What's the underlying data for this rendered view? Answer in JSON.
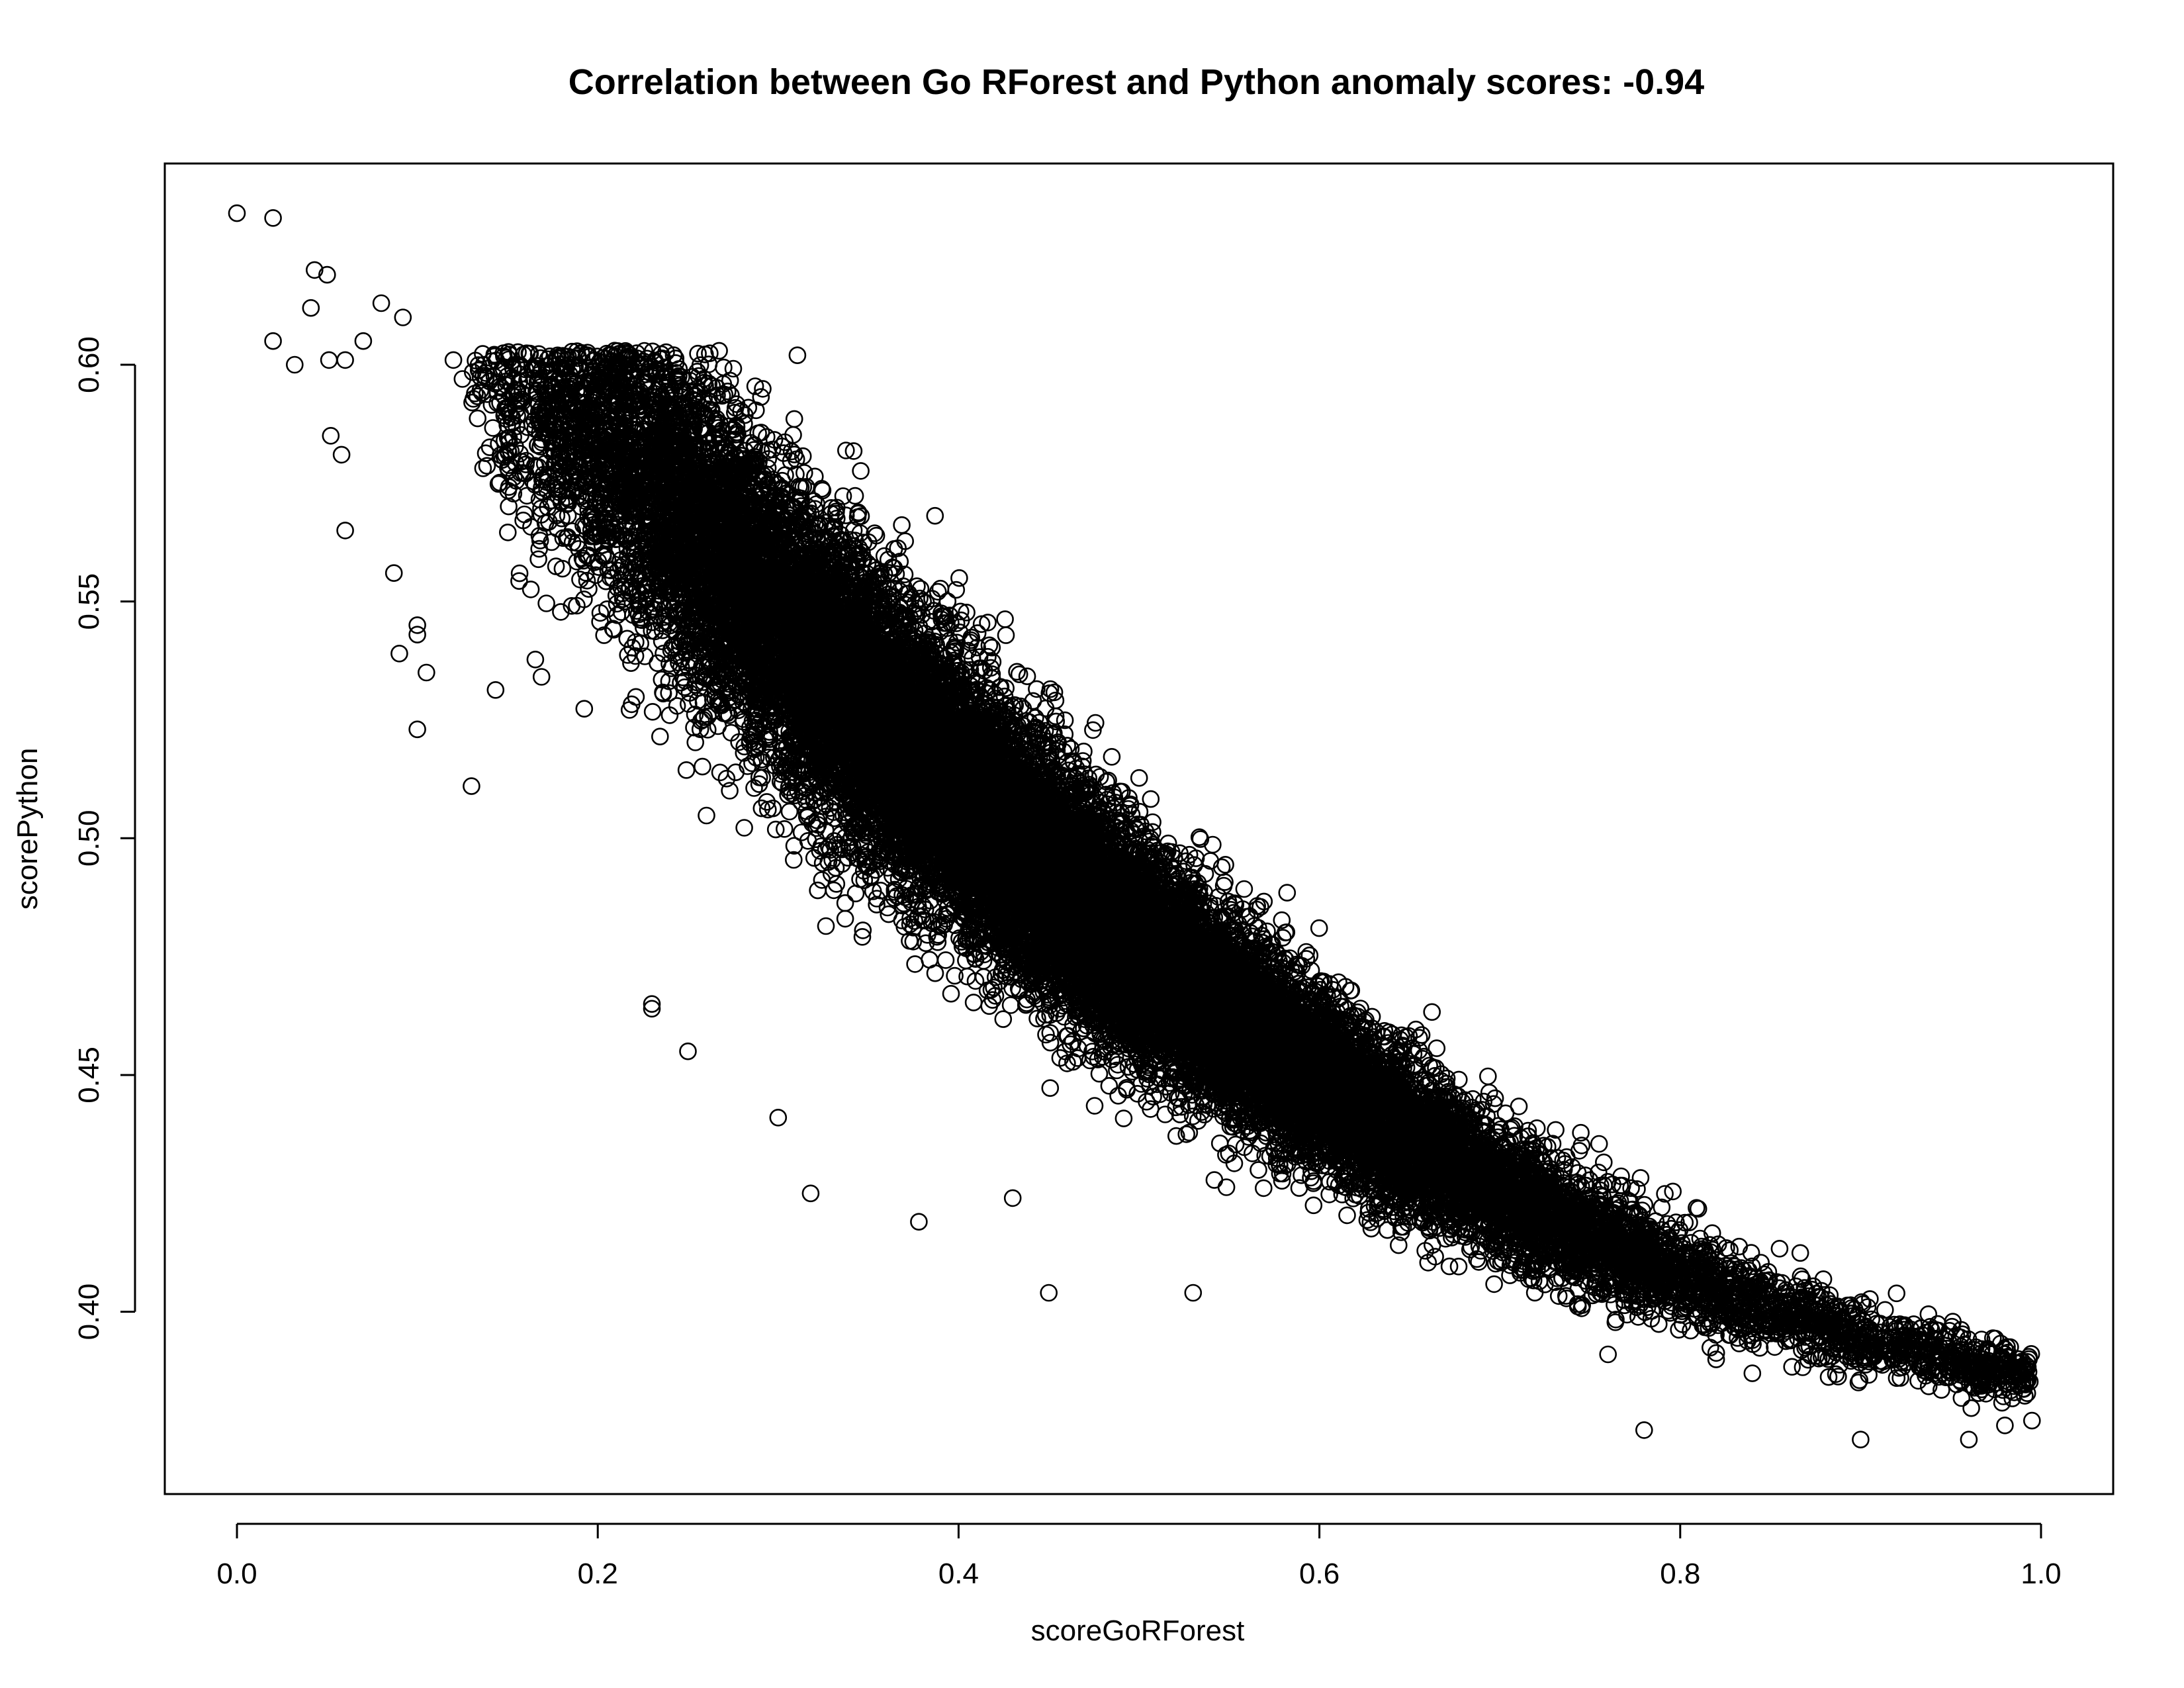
{
  "chart_data": {
    "type": "scatter",
    "title": "Correlation between Go RForest and Python anomaly scores: -0.94",
    "xlabel": "scoreGoRForest",
    "ylabel": "scorePython",
    "xlim": [
      -0.04,
      1.04
    ],
    "ylim": [
      0.3615,
      0.6425
    ],
    "x_ticks": [
      {
        "value": 0.0,
        "label": "0.0"
      },
      {
        "value": 0.2,
        "label": "0.2"
      },
      {
        "value": 0.4,
        "label": "0.4"
      },
      {
        "value": 0.6,
        "label": "0.6"
      },
      {
        "value": 0.8,
        "label": "0.8"
      },
      {
        "value": 1.0,
        "label": "1.0"
      }
    ],
    "y_ticks": [
      {
        "value": 0.4,
        "label": "0.40"
      },
      {
        "value": 0.45,
        "label": "0.45"
      },
      {
        "value": 0.5,
        "label": "0.50"
      },
      {
        "value": 0.55,
        "label": "0.55"
      },
      {
        "value": 0.6,
        "label": "0.60"
      }
    ],
    "grid": false,
    "marker": "open-circle",
    "correlation": -0.94,
    "series": [
      {
        "x": [
          0.0,
          0.02,
          0.043,
          0.05,
          0.02,
          0.041,
          0.08,
          0.092,
          0.032,
          0.051,
          0.06,
          0.07,
          0.06,
          0.12,
          0.125,
          0.1,
          0.058,
          0.052,
          0.1,
          0.105,
          0.09,
          0.087,
          0.1,
          0.13,
          0.318,
          0.378,
          0.45,
          0.25,
          0.3,
          0.49,
          0.61,
          0.65,
          0.78,
          0.92,
          0.96,
          0.995,
          0.43,
          0.535,
          0.16,
          0.23,
          0.53,
          0.745,
          0.23,
          0.6,
          0.76,
          0.84,
          0.965,
          0.9,
          0.18,
          0.37,
          0.92,
          0.98
        ],
        "y": [
          0.632,
          0.631,
          0.62,
          0.619,
          0.605,
          0.612,
          0.613,
          0.61,
          0.6,
          0.601,
          0.601,
          0.605,
          0.565,
          0.601,
          0.597,
          0.523,
          0.581,
          0.585,
          0.543,
          0.535,
          0.539,
          0.556,
          0.545,
          0.511,
          0.425,
          0.419,
          0.404,
          0.455,
          0.441,
          0.471,
          0.441,
          0.438,
          0.375,
          0.396,
          0.373,
          0.377,
          0.424,
          0.461,
          0.577,
          0.465,
          0.404,
          0.411,
          0.464,
          0.441,
          0.391,
          0.387,
          0.388,
          0.373,
          0.578,
          0.506,
          0.386,
          0.376
        ]
      }
    ]
  }
}
